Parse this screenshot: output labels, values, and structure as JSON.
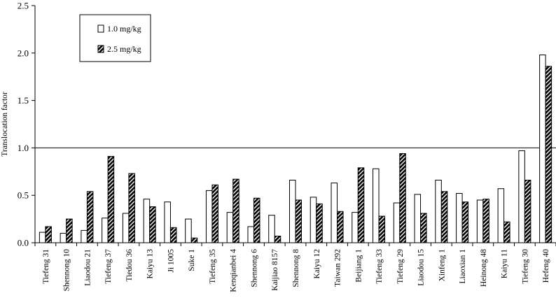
{
  "chart_data": {
    "type": "bar",
    "ylabel": "Translocation factor",
    "ylim": [
      0,
      2.5
    ],
    "yticks": [
      "0.0",
      "0.5",
      "1.0",
      "1.5",
      "2.0",
      "2.5"
    ],
    "reference_line": 1.0,
    "legend_position": "top-left",
    "grid": false,
    "categories": [
      "Tiefeng 31",
      "Shennong 10",
      "Liaodou 21",
      "Tiefeng 37",
      "Tiedou 36",
      "Kaiyu 13",
      "Ji 1005",
      "Suke 1",
      "Tiefeng 35",
      "Kenqianbei 4",
      "Shennong 6",
      "Kaijiao 8157",
      "Shennong 8",
      "Kaiyu 12",
      "Taiwan 292",
      "Beijiang 1",
      "Tiefeng 33",
      "Tiefeng 29",
      "Liaodou 15",
      "Xinfeng 1",
      "Liaoxian 1",
      "Heinong 48",
      "Kaiyu 11",
      "Tiefeng 30",
      "Hefeng 40"
    ],
    "series": [
      {
        "name": "1.0 mg/kg",
        "color": "#ffffff",
        "pattern": "none",
        "values": [
          0.11,
          0.1,
          0.13,
          0.26,
          0.31,
          0.46,
          0.43,
          0.25,
          0.55,
          0.32,
          0.17,
          0.29,
          0.66,
          0.48,
          0.63,
          0.32,
          0.78,
          0.42,
          0.51,
          0.66,
          0.52,
          0.45,
          0.57,
          0.97,
          1.98
        ]
      },
      {
        "name": "2.5 mg/kg",
        "color": "#000000",
        "pattern": "diagonal-hatch",
        "values": [
          0.17,
          0.25,
          0.54,
          0.91,
          0.73,
          0.38,
          0.16,
          0.05,
          0.61,
          0.67,
          0.47,
          0.07,
          0.45,
          0.41,
          0.33,
          0.79,
          0.28,
          0.94,
          0.31,
          0.54,
          0.43,
          0.46,
          0.22,
          0.66,
          1.86
        ]
      }
    ]
  }
}
